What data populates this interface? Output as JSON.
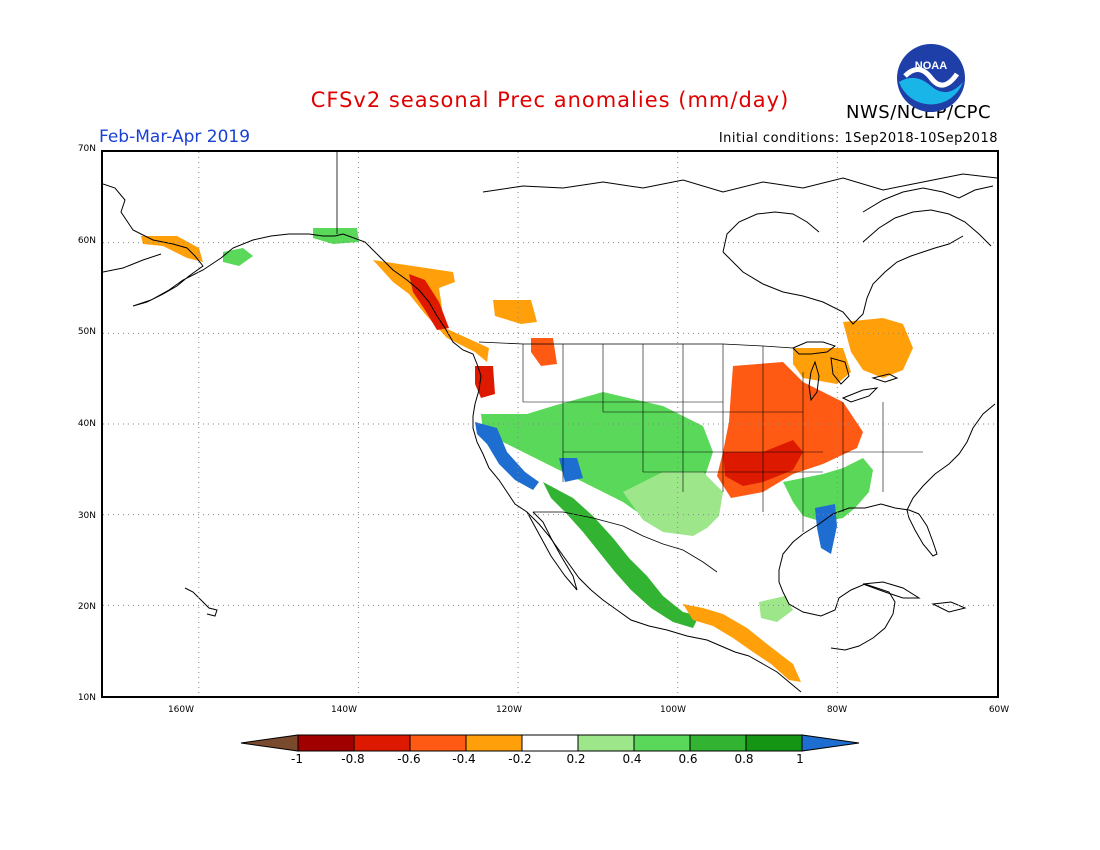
{
  "title": "CFSv2 seasonal Prec anomalies (mm/day)",
  "season": "Feb-Mar-Apr 2019",
  "initial_conditions": "Initial conditions: 1Sep2018-10Sep2018",
  "agency": "NWS/NCEP/CPC",
  "logo_text": "NOAA",
  "lat_labels": [
    "70N",
    "60N",
    "50N",
    "40N",
    "30N",
    "20N",
    "10N"
  ],
  "lon_labels": [
    "160W",
    "140W",
    "120W",
    "100W",
    "80W",
    "60W"
  ],
  "legend": {
    "labels": [
      "-1",
      "-0.8",
      "-0.6",
      "-0.4",
      "-0.2",
      "0.2",
      "0.4",
      "0.6",
      "0.8",
      "1"
    ],
    "colors": {
      "lt_-1": "#7a4a2e",
      "-1_-0.8": "#a00000",
      "-0.8_-0.6": "#dd1a00",
      "-0.6_-0.4": "#ff5a14",
      "-0.4_-0.2": "#ffa00a",
      "-0.2_0.2": "#ffffff",
      "0.2_0.4": "#9ee68a",
      "0.4_0.6": "#5ad85a",
      "0.6_0.8": "#32b432",
      "0.8_1": "#149614",
      "gt_1": "#1e6ed2"
    }
  },
  "map": {
    "domain": {
      "lon": [
        -172,
        -60
      ],
      "lat": [
        10,
        70
      ]
    },
    "grid_lat": [
      20,
      30,
      40,
      50,
      60
    ],
    "grid_lon": [
      -160,
      -140,
      -120,
      -100,
      -80
    ],
    "anomaly_regions": [
      {
        "name": "alaska-southwest-dry",
        "category": "-0.4_-0.2"
      },
      {
        "name": "alaska-interior-wet",
        "category": "0.4_0.6"
      },
      {
        "name": "yukon-wet",
        "category": "0.4_0.6"
      },
      {
        "name": "bc-coast-dry",
        "category": "-0.4_-0.2"
      },
      {
        "name": "bc-coast-core-dry",
        "category": "-0.8_-0.6"
      },
      {
        "name": "pacific-northwest-dry",
        "category": "-0.8_-0.6"
      },
      {
        "name": "alberta-dry",
        "category": "-0.4_-0.2"
      },
      {
        "name": "montana-dry",
        "category": "-0.6_-0.4"
      },
      {
        "name": "southwest-us-wet",
        "category": "0.4_0.6"
      },
      {
        "name": "california-coast-very-wet",
        "category": "gt_1"
      },
      {
        "name": "arizona-very-wet",
        "category": "gt_1"
      },
      {
        "name": "mexico-wet",
        "category": "0.6_0.8"
      },
      {
        "name": "texas-wet",
        "category": "0.2_0.4"
      },
      {
        "name": "ohio-valley-dry",
        "category": "-0.6_-0.4"
      },
      {
        "name": "lower-mississippi-dry",
        "category": "-0.8_-0.6"
      },
      {
        "name": "great-lakes-dry",
        "category": "-0.4_-0.2"
      },
      {
        "name": "ontario-quebec-dry",
        "category": "-0.4_-0.2"
      },
      {
        "name": "southeast-wet",
        "category": "0.4_0.6"
      },
      {
        "name": "florida-very-wet",
        "category": "gt_1"
      },
      {
        "name": "central-america-dry",
        "category": "-0.4_-0.2"
      },
      {
        "name": "caribbean-wet",
        "category": "0.2_0.4"
      }
    ]
  }
}
